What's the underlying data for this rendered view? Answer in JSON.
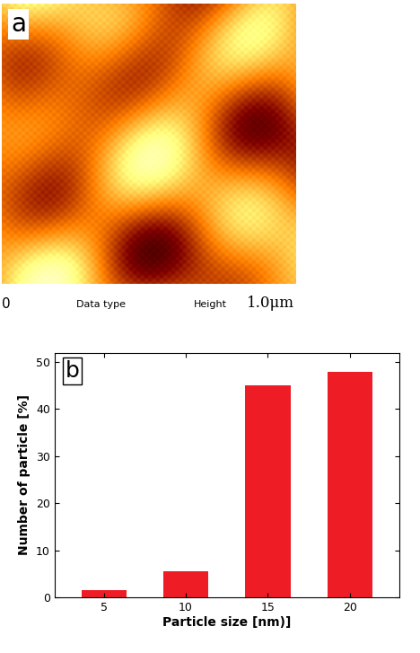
{
  "chart_data": [
    {
      "type": "image",
      "label": "a",
      "x_labels": [
        "0",
        "1.0μm"
      ],
      "annotations": [
        "Data type",
        "Height"
      ]
    },
    {
      "type": "bar",
      "label": "b",
      "categories": [
        "5",
        "10",
        "15",
        "20"
      ],
      "values": [
        1.5,
        5.5,
        45,
        48
      ],
      "color": "#ee1c25",
      "xlabel": "Particle size [nm)]",
      "ylabel": "Number of particle [%]",
      "ylim": [
        0,
        52
      ],
      "yticks": [
        0,
        10,
        20,
        30,
        40,
        50
      ]
    }
  ]
}
